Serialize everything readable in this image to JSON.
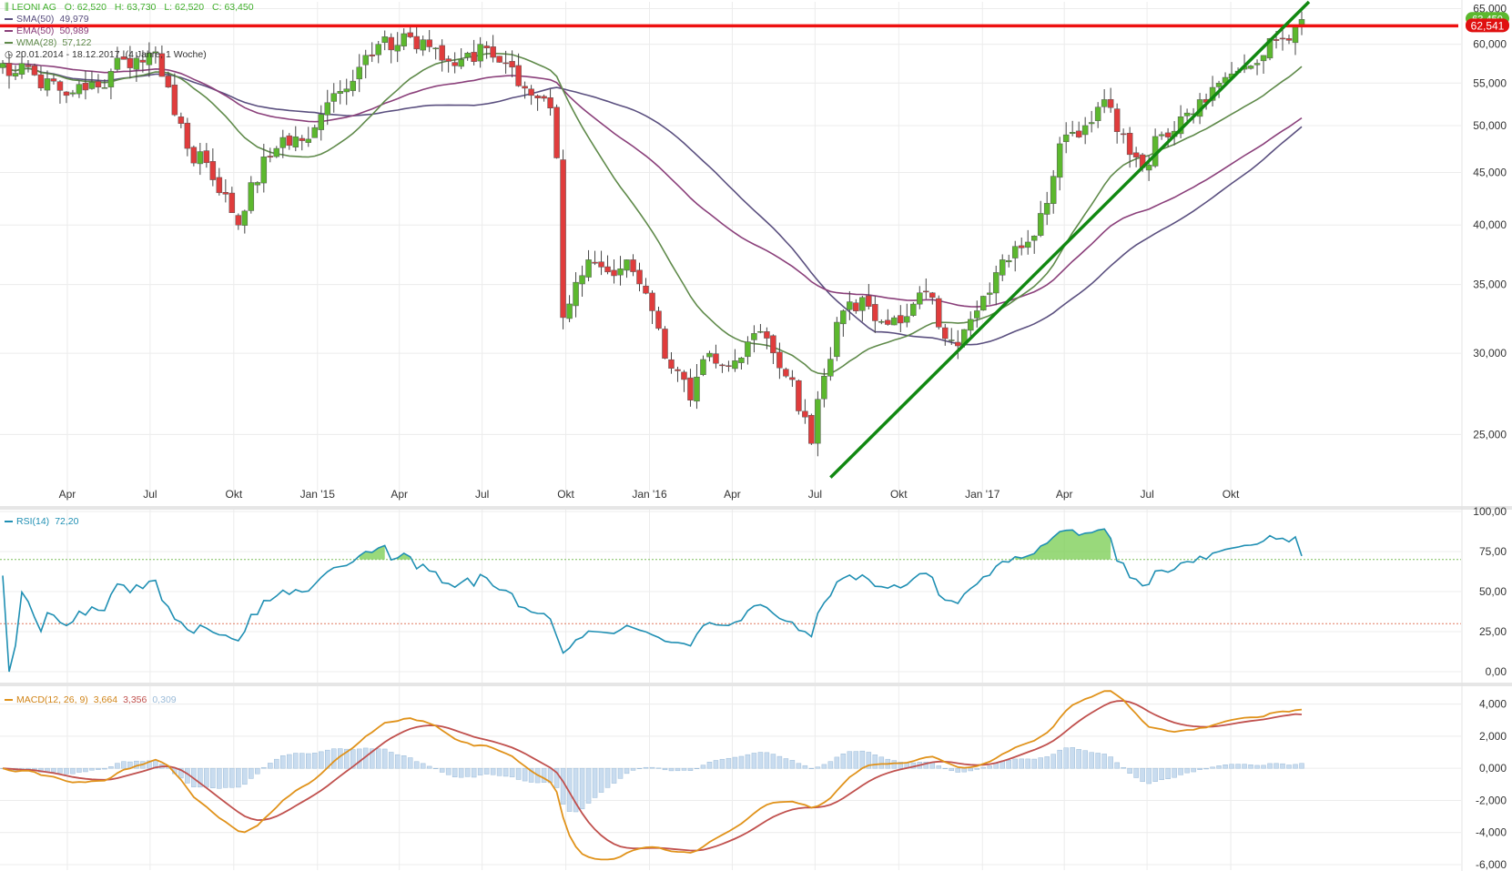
{
  "header": {
    "instrument": "LEONI AG",
    "open": "O: 62,520",
    "high": "H: 63,730",
    "low": "L: 62,520",
    "close": "C: 63,450",
    "period": "20.01.2014 - 18.12.2017",
    "period_detail": "(4 Jahre, 1 Woche)"
  },
  "indicators": [
    {
      "label": "SMA(50)",
      "value": "49,979",
      "color": "#5a4f7f"
    },
    {
      "label": "EMA(50)",
      "value": "50,989",
      "color": "#8a3f7a"
    },
    {
      "label": "WMA(28)",
      "value": "57,122",
      "color": "#5f8a4a"
    }
  ],
  "rsi_legend": {
    "label": "RSI(14)",
    "value": "72,20",
    "color": "#1f8fb3"
  },
  "macd_legend": {
    "label": "MACD(12, 26, 9)",
    "macd": "3,664",
    "signal": "3,356",
    "hist": "0,309",
    "macd_color": "#e0921a",
    "signal_color": "#c0504d",
    "hist_color": "#9bbbd8"
  },
  "price_labels": {
    "last": "62,541",
    "last_behind": "63,450"
  },
  "colors": {
    "up": "#5cb82e",
    "down": "#e03c3c",
    "resistance": "#ee1111",
    "trend": "#118811"
  },
  "chart_data": [
    {
      "type": "candlestick",
      "title": "LEONI AG",
      "scale": "log",
      "ylim": [
        22000,
        66000
      ],
      "y_ticks": [
        "25,000",
        "30,000",
        "35,000",
        "40,000",
        "45,000",
        "50,000",
        "55,000",
        "60,000",
        "65,000"
      ],
      "x_ticks": [
        "Apr",
        "Jul",
        "Okt",
        "Jan 2015",
        "Apr",
        "Jul",
        "Okt",
        "Jan 2016",
        "Apr",
        "Jul",
        "Okt",
        "Jan 2017",
        "Apr",
        "Jul",
        "Okt"
      ],
      "x_tick_labels": [
        "Apr",
        "Jul",
        "Okt",
        "Jan '15",
        "Apr",
        "Jul",
        "Okt",
        "Jan '16",
        "Apr",
        "Jul",
        "Okt",
        "Jan '17",
        "Apr",
        "Jul",
        "Okt"
      ],
      "close_anchors": [
        [
          "2014-01-20",
          57.5
        ],
        [
          "2014-02-24",
          56.0
        ],
        [
          "2014-03-31",
          53.5
        ],
        [
          "2014-05-05",
          54.5
        ],
        [
          "2014-06-02",
          58.0
        ],
        [
          "2014-07-07",
          59.0
        ],
        [
          "2014-07-21",
          54.5
        ],
        [
          "2014-08-11",
          47.5
        ],
        [
          "2014-09-01",
          46.0
        ],
        [
          "2014-09-15",
          43.0
        ],
        [
          "2014-10-06",
          40.0
        ],
        [
          "2014-10-20",
          44.0
        ],
        [
          "2014-11-17",
          47.5
        ],
        [
          "2014-12-22",
          48.5
        ],
        [
          "2015-01-26",
          54.0
        ],
        [
          "2015-02-16",
          57.0
        ],
        [
          "2015-03-09",
          60.0
        ],
        [
          "2015-04-13",
          61.0
        ],
        [
          "2015-05-11",
          59.5
        ],
        [
          "2015-06-08",
          58.0
        ],
        [
          "2015-07-06",
          59.5
        ],
        [
          "2015-08-03",
          57.0
        ],
        [
          "2015-08-24",
          53.5
        ],
        [
          "2015-09-14",
          52.0
        ],
        [
          "2015-09-21",
          46.5
        ],
        [
          "2015-09-28",
          32.5
        ],
        [
          "2015-10-26",
          37.0
        ],
        [
          "2015-11-16",
          36.0
        ],
        [
          "2015-12-07",
          37.0
        ],
        [
          "2016-01-04",
          33.0
        ],
        [
          "2016-01-25",
          29.0
        ],
        [
          "2016-02-15",
          27.0
        ],
        [
          "2016-03-07",
          30.0
        ],
        [
          "2016-04-04",
          29.5
        ],
        [
          "2016-05-02",
          31.5
        ],
        [
          "2016-05-30",
          28.5
        ],
        [
          "2016-06-20",
          26.0
        ],
        [
          "2016-06-27",
          24.5
        ],
        [
          "2016-07-11",
          28.5
        ],
        [
          "2016-08-01",
          33.0
        ],
        [
          "2016-08-22",
          34.0
        ],
        [
          "2016-09-19",
          32.0
        ],
        [
          "2016-10-17",
          33.5
        ],
        [
          "2016-11-07",
          34.0
        ],
        [
          "2016-11-21",
          31.0
        ],
        [
          "2016-12-05",
          30.5
        ],
        [
          "2016-12-26",
          33.0
        ],
        [
          "2017-01-23",
          37.0
        ],
        [
          "2017-02-20",
          38.5
        ],
        [
          "2017-03-13",
          42.0
        ],
        [
          "2017-03-27",
          48.0
        ],
        [
          "2017-04-24",
          50.0
        ],
        [
          "2017-05-15",
          53.0
        ],
        [
          "2017-06-05",
          49.0
        ],
        [
          "2017-06-26",
          45.5
        ],
        [
          "2017-07-17",
          49.0
        ],
        [
          "2017-08-07",
          51.0
        ],
        [
          "2017-08-28",
          53.0
        ],
        [
          "2017-09-18",
          55.0
        ],
        [
          "2017-10-09",
          56.5
        ],
        [
          "2017-10-30",
          57.5
        ],
        [
          "2017-11-20",
          60.5
        ],
        [
          "2017-12-11",
          62.5
        ],
        [
          "2017-12-18",
          63.45
        ]
      ],
      "overlays": [
        {
          "name": "SMA(50)",
          "color": "#5a4f7f",
          "value": 49.979
        },
        {
          "name": "EMA(50)",
          "color": "#8a3f7a",
          "value": 50.989
        },
        {
          "name": "WMA(28)",
          "color": "#5f8a4a",
          "value": 57.122
        }
      ],
      "resistance_level": 62.541,
      "trendline": [
        [
          "2016-07-18",
          22.7
        ],
        [
          "2017-12-26",
          66.0
        ]
      ]
    },
    {
      "type": "line",
      "title": "RSI(14)",
      "ylim": [
        0,
        100
      ],
      "y_ticks": [
        "0,00",
        "25,00",
        "50,00",
        "75,00",
        "100,00"
      ],
      "overbought": 70,
      "oversold": 30,
      "last_value": 72.2
    },
    {
      "type": "line",
      "title": "MACD(12, 26, 9)",
      "ylim": [
        -6,
        5
      ],
      "y_ticks": [
        "-6,000",
        "-4,000",
        "-2,000",
        "0,000",
        "2,000",
        "4,000"
      ],
      "series": [
        {
          "name": "MACD",
          "last_value": 3.664
        },
        {
          "name": "Signal",
          "last_value": 3.356
        },
        {
          "name": "Histogram",
          "last_value": 0.309
        }
      ]
    }
  ]
}
